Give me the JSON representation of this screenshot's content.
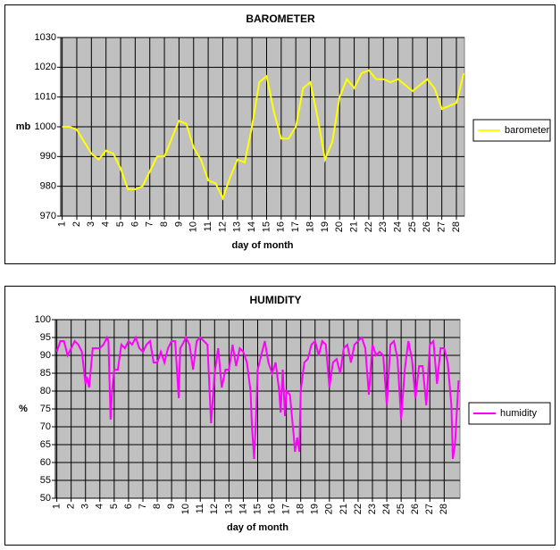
{
  "chart_data": [
    {
      "type": "line",
      "title": "BAROMETER",
      "x_label": "day of month",
      "y_label": "mb",
      "x": [
        1,
        1.5,
        2,
        2.5,
        3,
        3.5,
        4,
        4.5,
        5,
        5.5,
        6,
        6.5,
        7,
        7.5,
        8,
        8.5,
        9,
        9.5,
        10,
        10.5,
        11,
        11.5,
        12,
        12.5,
        13,
        13.5,
        14,
        14.5,
        15,
        15.5,
        16,
        16.5,
        17,
        17.5,
        18,
        18.5,
        19,
        19.5,
        20,
        20.5,
        21,
        21.5,
        22,
        22.5,
        23,
        23.5,
        24,
        24.5,
        25,
        25.5,
        26,
        26.5,
        27,
        27.5,
        28,
        28.5
      ],
      "series": [
        {
          "name": "barometer",
          "color": "#ffff00",
          "values": [
            1000,
            1000,
            999,
            995,
            991,
            989,
            992,
            991,
            986,
            979,
            979,
            980,
            985,
            990,
            990,
            996,
            1002,
            1001,
            993,
            989,
            982,
            981,
            976,
            983,
            989,
            988,
            1000,
            1015,
            1017,
            1005,
            996,
            996,
            1000,
            1013,
            1015,
            1003,
            989,
            995,
            1010,
            1016,
            1013,
            1018,
            1019,
            1016,
            1016,
            1015,
            1016,
            1014,
            1012,
            1014,
            1016,
            1013,
            1006,
            1007,
            1008,
            1018
          ]
        }
      ],
      "xlim": [
        0.9,
        28.55
      ],
      "ylim": [
        970,
        1030
      ],
      "xticks": [
        1,
        2,
        3,
        4,
        5,
        6,
        7,
        8,
        9,
        10,
        11,
        12,
        13,
        14,
        15,
        16,
        17,
        18,
        19,
        20,
        21,
        22,
        23,
        24,
        25,
        26,
        27,
        28
      ],
      "yticks": [
        970,
        980,
        990,
        1000,
        1010,
        1020,
        1030
      ],
      "grid": true,
      "legend": "right",
      "background": "#c0c0c0"
    },
    {
      "type": "line",
      "title": "HUMIDITY",
      "x_label": "day of month",
      "y_label": "%",
      "x": [
        1,
        1.25,
        1.5,
        1.75,
        2,
        2.25,
        2.5,
        2.75,
        3,
        3.1,
        3.25,
        3.5,
        3.75,
        4,
        4.25,
        4.5,
        4.6,
        4.75,
        4.85,
        5,
        5.25,
        5.5,
        5.75,
        6,
        6.25,
        6.5,
        6.75,
        7,
        7.25,
        7.5,
        7.75,
        8,
        8.25,
        8.5,
        8.75,
        9,
        9.25,
        9.5,
        9.6,
        9.75,
        10,
        10.25,
        10.5,
        10.75,
        11,
        11.25,
        11.5,
        11.75,
        12,
        12.25,
        12.5,
        12.75,
        13,
        13.25,
        13.5,
        13.75,
        14,
        14.25,
        14.5,
        14.6,
        14.75,
        14.9,
        15,
        15.25,
        15.5,
        15.75,
        16,
        16.25,
        16.5,
        16.6,
        16.75,
        16.9,
        17,
        17.25,
        17.5,
        17.6,
        17.75,
        17.9,
        18,
        18.25,
        18.5,
        18.75,
        19,
        19.25,
        19.5,
        19.75,
        20,
        20.25,
        20.5,
        20.75,
        21,
        21.25,
        21.5,
        21.75,
        22,
        22.25,
        22.5,
        22.75,
        23,
        23.25,
        23.5,
        23.75,
        24,
        24.25,
        24.5,
        24.75,
        25,
        25.25,
        25.5,
        25.75,
        26,
        26.25,
        26.5,
        26.75,
        27,
        27.25,
        27.5,
        27.75,
        28,
        28.25,
        28.5,
        28.6,
        28.75,
        29
      ],
      "series": [
        {
          "name": "humidity",
          "color": "#ff00ff",
          "values": [
            91,
            94,
            94,
            90,
            92,
            94,
            93,
            91,
            82,
            84,
            81,
            92,
            92,
            92,
            93,
            95,
            94,
            72,
            80,
            86,
            86,
            93,
            92,
            94,
            93,
            95,
            92,
            91,
            93,
            94,
            88,
            88,
            91,
            88,
            92,
            94,
            94,
            78,
            92,
            93,
            95,
            93,
            86,
            94,
            95,
            94,
            93,
            71,
            85,
            92,
            81,
            86,
            86,
            93,
            87,
            92,
            91,
            88,
            80,
            70,
            61,
            74,
            86,
            90,
            94,
            88,
            85,
            88,
            80,
            74,
            86,
            73,
            80,
            79,
            68,
            63,
            67,
            63,
            80,
            88,
            89,
            93,
            94,
            90,
            94,
            93,
            81,
            88,
            89,
            85,
            92,
            93,
            88,
            93,
            94,
            95,
            92,
            79,
            93,
            90,
            91,
            90,
            76,
            93,
            94,
            89,
            72,
            86,
            94,
            89,
            78,
            87,
            87,
            76,
            93,
            94,
            82,
            92,
            92,
            88,
            76,
            61,
            65,
            83
          ]
        }
      ],
      "xlim": [
        0.9,
        29.1
      ],
      "ylim": [
        50,
        100
      ],
      "xticks": [
        1,
        2,
        3,
        4,
        5,
        6,
        7,
        8,
        9,
        10,
        11,
        12,
        13,
        14,
        15,
        16,
        17,
        18,
        19,
        20,
        21,
        22,
        23,
        24,
        25,
        26,
        27,
        28
      ],
      "yticks": [
        50,
        55,
        60,
        65,
        70,
        75,
        80,
        85,
        90,
        95,
        100
      ],
      "grid": true,
      "legend": "right",
      "background": "#c0c0c0"
    }
  ]
}
